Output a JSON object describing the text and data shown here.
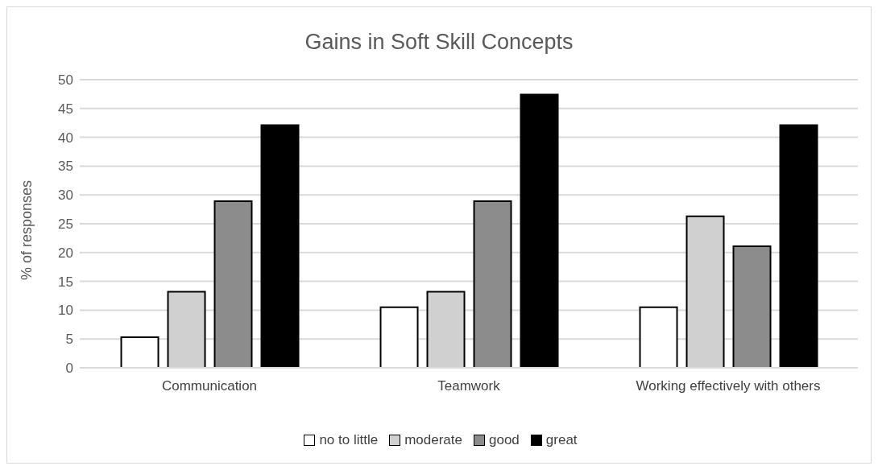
{
  "chart_data": {
    "type": "bar",
    "title": "Gains in Soft Skill Concepts",
    "ylabel": "% of responses",
    "categories": [
      "Communication",
      "Teamwork",
      "Working effectively with others"
    ],
    "series": [
      {
        "name": "no to little",
        "color": "#ffffff",
        "values": [
          5.3,
          10.5,
          10.5
        ]
      },
      {
        "name": "moderate",
        "color": "#d0d0d0",
        "values": [
          13.2,
          13.2,
          26.3
        ]
      },
      {
        "name": "good",
        "color": "#8c8c8c",
        "values": [
          28.9,
          28.9,
          21.1
        ]
      },
      {
        "name": "great",
        "color": "#000000",
        "values": [
          42.1,
          47.4,
          42.1
        ]
      }
    ],
    "ylim": [
      0,
      50
    ],
    "yticks": [
      0,
      5,
      10,
      15,
      20,
      25,
      30,
      35,
      40,
      45,
      50
    ],
    "grid": "y",
    "legend": "bottom"
  }
}
